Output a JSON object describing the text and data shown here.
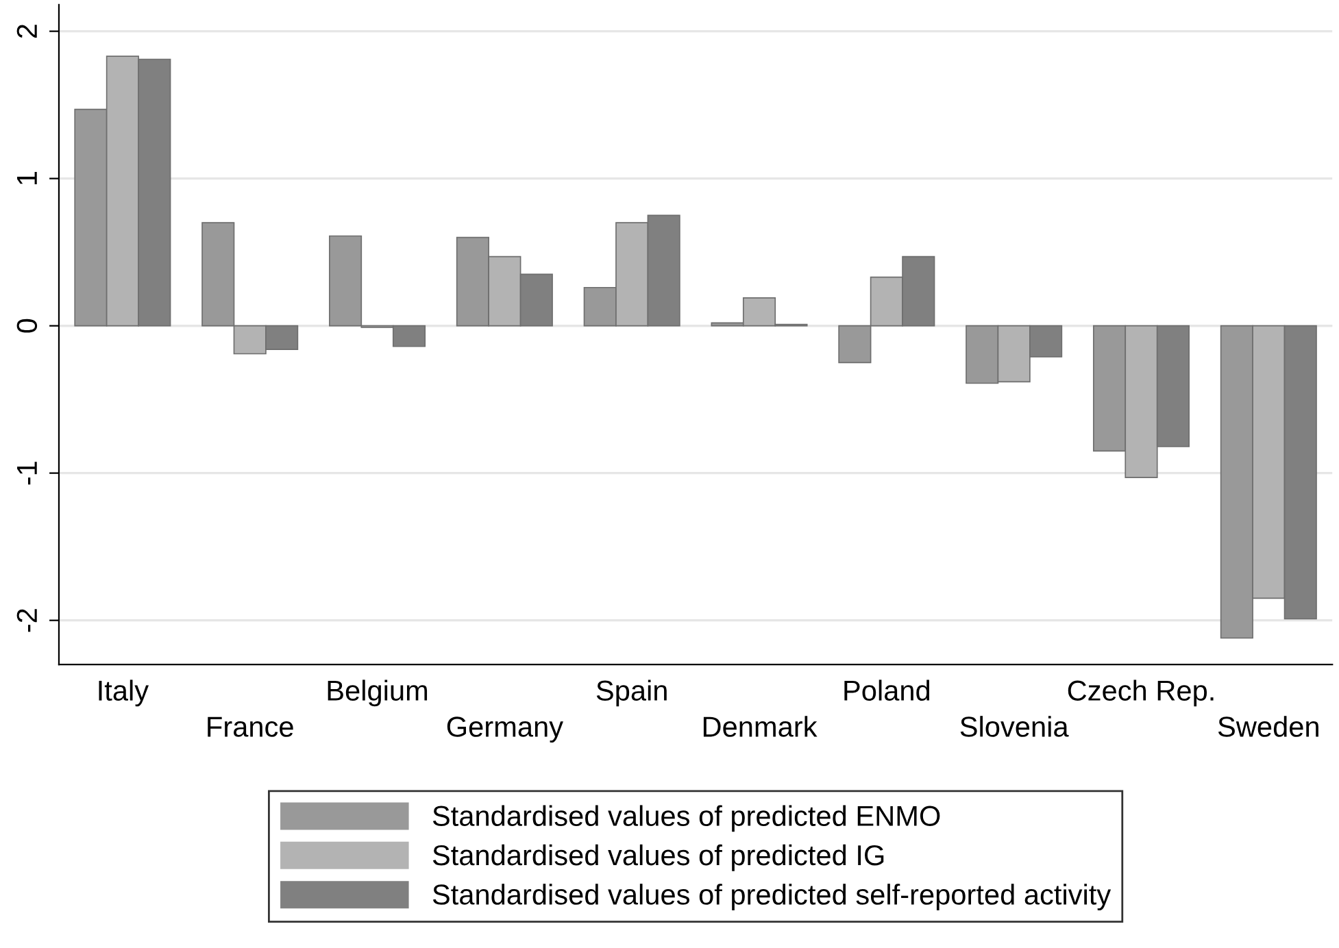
{
  "chart_data": {
    "type": "bar",
    "categories": [
      "Italy",
      "France",
      "Belgium",
      "Germany",
      "Spain",
      "Denmark",
      "Poland",
      "Slovenia",
      "Czech Rep.",
      "Sweden"
    ],
    "series": [
      {
        "name": "Standardised values of predicted ENMO",
        "color": "#999999",
        "values": [
          1.47,
          0.7,
          0.61,
          0.6,
          0.26,
          0.02,
          -0.25,
          -0.39,
          -0.85,
          -2.12
        ]
      },
      {
        "name": "Standardised values of predicted IG",
        "color": "#b3b3b3",
        "values": [
          1.83,
          -0.19,
          -0.01,
          0.47,
          0.7,
          0.19,
          0.33,
          -0.38,
          -1.03,
          -1.85
        ]
      },
      {
        "name": "Standardised values of predicted self-reported activity",
        "color": "#808080",
        "values": [
          1.81,
          -0.16,
          -0.14,
          0.35,
          0.75,
          0.01,
          0.47,
          -0.21,
          -0.82,
          -1.99
        ]
      }
    ],
    "ylim": [
      -2.3,
      2.18
    ],
    "yticks": [
      -2,
      -1,
      0,
      1,
      2
    ],
    "grid": "y",
    "legend": "bottom"
  }
}
